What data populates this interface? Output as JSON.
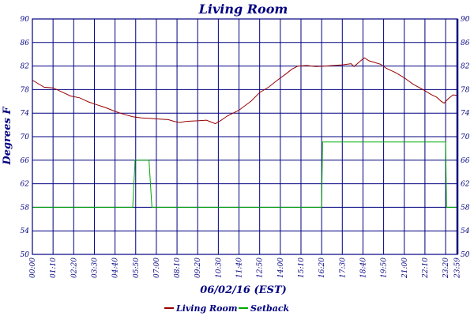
{
  "chart_data": {
    "type": "line",
    "title": "Living Room",
    "xlabel": "06/02/16 (EST)",
    "ylabel": "Degrees F",
    "ylim": [
      50,
      90
    ],
    "xlim_minutes": [
      0,
      1440
    ],
    "y_ticks": [
      50,
      54,
      58,
      62,
      66,
      70,
      74,
      78,
      82,
      86,
      90
    ],
    "x_tick_labels": [
      "00:00",
      "01:10",
      "02:20",
      "03:30",
      "04:40",
      "05:50",
      "07:00",
      "08:10",
      "09:20",
      "10:30",
      "11:40",
      "12:50",
      "14:00",
      "15:10",
      "16:20",
      "17:30",
      "18:40",
      "19:50",
      "21:00",
      "22:10",
      "23:20",
      "23:59"
    ],
    "x_tick_minutes": [
      0,
      70,
      140,
      210,
      280,
      350,
      420,
      490,
      560,
      630,
      700,
      770,
      840,
      910,
      980,
      1050,
      1120,
      1190,
      1260,
      1330,
      1400,
      1439
    ],
    "grid": true,
    "legend_position": "bottom",
    "series": [
      {
        "name": "Living Room",
        "color": "#990000",
        "points": [
          [
            0,
            79.6
          ],
          [
            20,
            79.0
          ],
          [
            40,
            78.4
          ],
          [
            70,
            78.3
          ],
          [
            100,
            77.6
          ],
          [
            130,
            76.9
          ],
          [
            160,
            76.6
          ],
          [
            190,
            75.9
          ],
          [
            220,
            75.4
          ],
          [
            250,
            74.9
          ],
          [
            280,
            74.3
          ],
          [
            310,
            73.8
          ],
          [
            340,
            73.4
          ],
          [
            370,
            73.2
          ],
          [
            400,
            73.1
          ],
          [
            430,
            73.0
          ],
          [
            460,
            72.9
          ],
          [
            480,
            72.6
          ],
          [
            500,
            72.4
          ],
          [
            520,
            72.6
          ],
          [
            560,
            72.7
          ],
          [
            590,
            72.8
          ],
          [
            610,
            72.4
          ],
          [
            620,
            72.2
          ],
          [
            640,
            72.8
          ],
          [
            660,
            73.5
          ],
          [
            700,
            74.5
          ],
          [
            740,
            76.0
          ],
          [
            770,
            77.5
          ],
          [
            800,
            78.4
          ],
          [
            830,
            79.6
          ],
          [
            860,
            80.7
          ],
          [
            880,
            81.5
          ],
          [
            900,
            82.0
          ],
          [
            930,
            82.1
          ],
          [
            960,
            81.9
          ],
          [
            990,
            82.0
          ],
          [
            1020,
            82.1
          ],
          [
            1050,
            82.2
          ],
          [
            1080,
            82.4
          ],
          [
            1090,
            81.9
          ],
          [
            1110,
            82.8
          ],
          [
            1125,
            83.4
          ],
          [
            1140,
            82.9
          ],
          [
            1160,
            82.6
          ],
          [
            1180,
            82.3
          ],
          [
            1200,
            81.6
          ],
          [
            1230,
            80.9
          ],
          [
            1260,
            80.0
          ],
          [
            1290,
            78.9
          ],
          [
            1320,
            78.1
          ],
          [
            1350,
            77.2
          ],
          [
            1370,
            76.7
          ],
          [
            1385,
            76.0
          ],
          [
            1395,
            75.7
          ],
          [
            1410,
            76.5
          ],
          [
            1425,
            77.1
          ],
          [
            1439,
            77.0
          ]
        ]
      },
      {
        "name": "Setback",
        "color": "#00aa00",
        "points": [
          [
            0,
            58
          ],
          [
            340,
            58
          ],
          [
            348,
            66
          ],
          [
            395,
            66
          ],
          [
            405,
            58
          ],
          [
            975,
            58
          ],
          [
            980,
            58
          ],
          [
            983,
            69.1
          ],
          [
            1400,
            69.1
          ],
          [
            1403,
            58
          ],
          [
            1439,
            58
          ]
        ]
      }
    ]
  }
}
